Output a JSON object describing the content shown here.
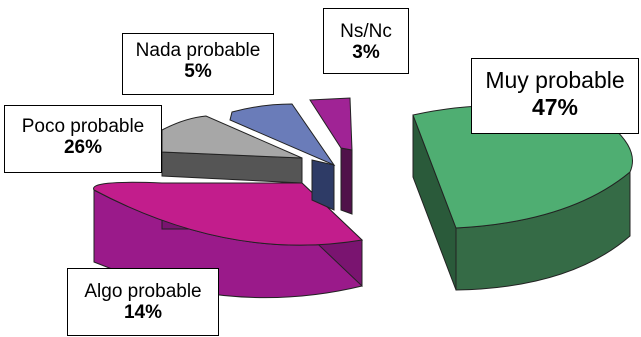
{
  "chart_data": {
    "type": "pie",
    "title": "",
    "style": "3d-exploded",
    "slices": [
      {
        "label": "Muy probable",
        "value": 47,
        "display": "47%",
        "color": "#4fae72"
      },
      {
        "label": "Algo probable",
        "value": 14,
        "display": "14%",
        "color": "#c21d8c"
      },
      {
        "label": "Poco probable",
        "value": 26,
        "display": "26%",
        "color": "#a7a7a7"
      },
      {
        "label": "Nada probable",
        "value": 5,
        "display": "5%",
        "color": "#6a7cb9"
      },
      {
        "label": "Ns/Nc",
        "value": 3,
        "display": "3%",
        "color": "#a02395"
      }
    ]
  }
}
